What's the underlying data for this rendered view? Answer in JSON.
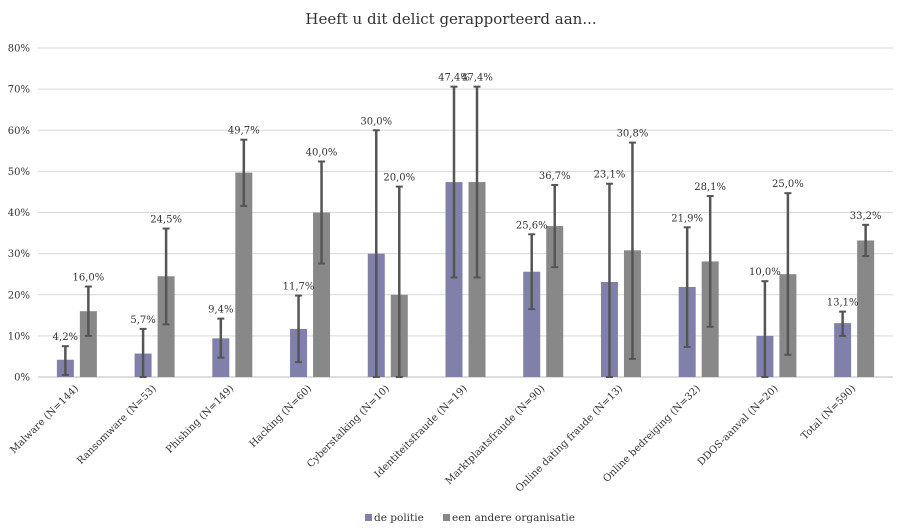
{
  "chart_data": {
    "type": "bar",
    "title": "Heeft u dit delict gerapporteerd aan...",
    "xlabel": "",
    "ylabel": "",
    "ylim": [
      0,
      80
    ],
    "yticks": [
      "0%",
      "10%",
      "20%",
      "30%",
      "40%",
      "50%",
      "60%",
      "70%",
      "80%"
    ],
    "grid": true,
    "legend_position": "bottom",
    "categories": [
      "Malware (N=144)",
      "Ransomware (N=53)",
      "Phishing (N=149)",
      "Hacking (N=60)",
      "Cyberstalking (N=10)",
      "Identiteitsfraude (N=19)",
      "Marktplaatsfraude (N=90)",
      "Online dating fraude (N=13)",
      "Online bedreiging (N=32)",
      "DDOS-aanval (N=20)",
      "Total (N=590)"
    ],
    "series": [
      {
        "name": "de politie",
        "color": "#8080aa",
        "values": [
          4.2,
          5.7,
          9.4,
          11.7,
          30.0,
          47.4,
          25.6,
          23.1,
          21.9,
          10.0,
          13.1
        ],
        "labels": [
          "4,2%",
          "5,7%",
          "9,4%",
          "11,7%",
          "30,0%",
          "47,4%",
          "25,6%",
          "23,1%",
          "21,9%",
          "10,0%",
          "13,1%"
        ],
        "error_low": [
          0.5,
          0,
          4.7,
          3.6,
          0,
          24.2,
          16.5,
          0,
          7.3,
          0,
          10.0
        ],
        "error_high": [
          7.5,
          11.7,
          14.2,
          19.8,
          60.0,
          70.6,
          34.7,
          47.0,
          36.4,
          23.3,
          15.9
        ]
      },
      {
        "name": "een andere organisatie",
        "color": "#888888",
        "values": [
          16.0,
          24.5,
          49.7,
          40.0,
          20.0,
          47.4,
          36.7,
          30.8,
          28.1,
          25.0,
          33.2
        ],
        "labels": [
          "16,0%",
          "24,5%",
          "49,7%",
          "40,0%",
          "20,0%",
          "47,4%",
          "36,7%",
          "30,8%",
          "28,1%",
          "25,0%",
          "33,2%"
        ],
        "error_low": [
          10.0,
          12.8,
          41.6,
          27.6,
          0,
          24.2,
          26.7,
          4.4,
          12.2,
          5.4,
          29.4
        ],
        "error_high": [
          22.0,
          36.1,
          57.7,
          52.4,
          46.3,
          70.6,
          46.7,
          57.0,
          44.0,
          44.7,
          37.0
        ]
      }
    ]
  }
}
